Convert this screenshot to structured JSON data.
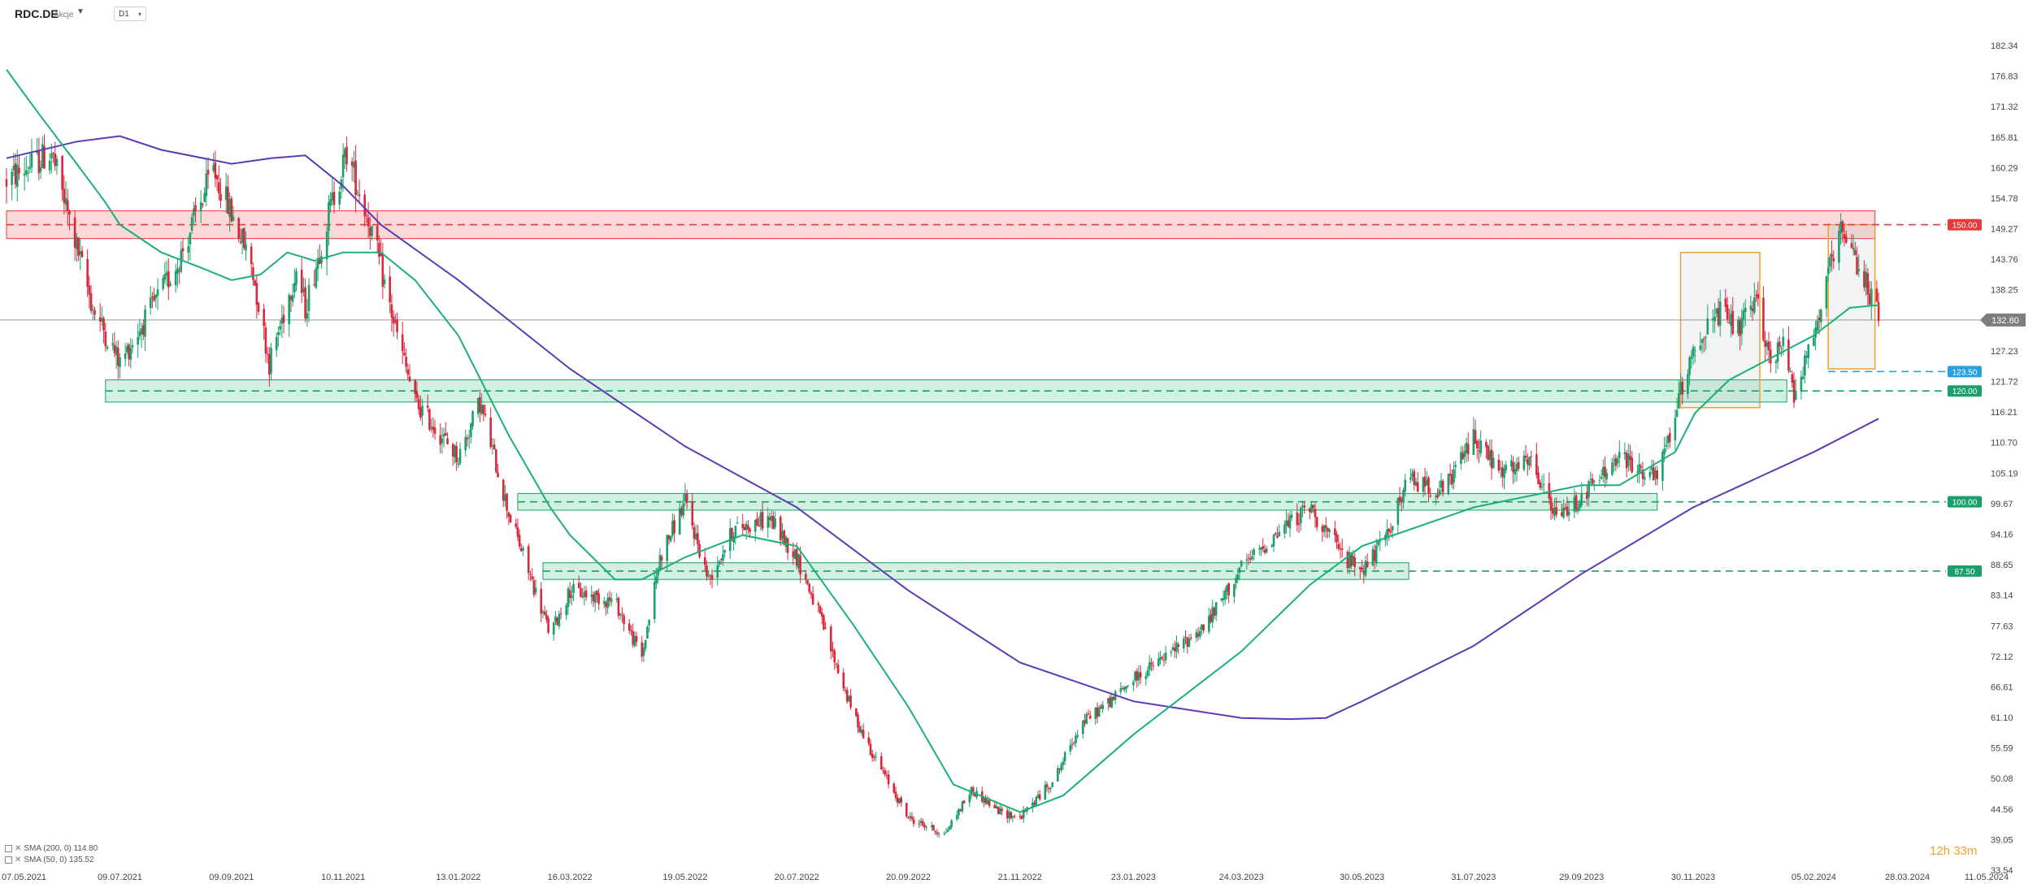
{
  "header": {
    "symbol": "RDC.DE",
    "instrument_type": "Akcje",
    "interval": "D1"
  },
  "indicators": [
    {
      "label": "SMA (200, 0) 114.80",
      "color": "#5b3bb5"
    },
    {
      "label": "SMA (50, 0) 135.52",
      "color": "#1ab07a"
    }
  ],
  "countdown": "12h 33m",
  "colors": {
    "up": "#1aa06a",
    "down": "#d8283c",
    "sma200": "#5b3bb5",
    "sma50": "#1ab07a",
    "resistance": "#e23c3c",
    "support": "#1aa06a",
    "current_price": "#8a8a8a",
    "highlight": "#f0a030",
    "level_blue": "#2aa0e0"
  },
  "chart_data": {
    "type": "candlestick",
    "instrument": "RDC.DE",
    "timeframe": "D1",
    "y_ticks": [
      182.34,
      176.83,
      171.32,
      165.81,
      160.29,
      154.78,
      149.27,
      143.76,
      138.25,
      127.23,
      121.72,
      116.21,
      110.7,
      105.19,
      99.67,
      94.16,
      88.65,
      83.14,
      77.63,
      72.12,
      66.61,
      61.1,
      55.59,
      50.08,
      44.56,
      39.05,
      33.54
    ],
    "ylim": [
      33.54,
      185
    ],
    "x_ticks": [
      "07.05.2021",
      "09.07.2021",
      "09.09.2021",
      "10.11.2021",
      "13.01.2022",
      "16.03.2022",
      "19.05.2022",
      "20.07.2022",
      "20.09.2022",
      "21.11.2022",
      "23.01.2023",
      "24.03.2023",
      "30.05.2023",
      "31.07.2023",
      "29.09.2023",
      "30.11.2023",
      "05.02.2024",
      "28.03.2024",
      "11.05.2024"
    ],
    "xlim": [
      "07.05.2021",
      "11.05.2024"
    ],
    "price_path": [
      [
        "07.05.2021",
        158
      ],
      [
        "01.06.2021",
        163
      ],
      [
        "24.06.2021",
        135
      ],
      [
        "09.07.2021",
        125
      ],
      [
        "10.08.2021",
        143
      ],
      [
        "30.08.2021",
        160
      ],
      [
        "20.09.2021",
        143
      ],
      [
        "30.09.2021",
        125
      ],
      [
        "15.10.2021",
        142
      ],
      [
        "20.10.2021",
        135
      ],
      [
        "02.11.2021",
        152
      ],
      [
        "12.11.2021",
        163
      ],
      [
        "25.11.2021",
        150
      ],
      [
        "10.12.2021",
        130
      ],
      [
        "20.12.2021",
        118
      ],
      [
        "13.01.2022",
        108
      ],
      [
        "25.01.2022",
        118
      ],
      [
        "10.02.2022",
        98
      ],
      [
        "05.03.2022",
        76
      ],
      [
        "16.03.2022",
        84
      ],
      [
        "10.04.2022",
        82
      ],
      [
        "25.04.2022",
        72
      ],
      [
        "05.05.2022",
        90
      ],
      [
        "19.05.2022",
        100
      ],
      [
        "01.06.2022",
        86
      ],
      [
        "15.06.2022",
        95
      ],
      [
        "05.07.2022",
        97
      ],
      [
        "20.07.2022",
        90
      ],
      [
        "01.08.2022",
        80
      ],
      [
        "20.08.2022",
        62
      ],
      [
        "01.09.2022",
        54
      ],
      [
        "20.09.2022",
        43
      ],
      [
        "10.10.2022",
        40
      ],
      [
        "25.10.2022",
        48
      ],
      [
        "10.11.2022",
        44
      ],
      [
        "21.11.2022",
        43
      ],
      [
        "10.12.2022",
        50
      ],
      [
        "25.12.2022",
        60
      ],
      [
        "10.01.2023",
        64
      ],
      [
        "23.01.2023",
        68
      ],
      [
        "10.02.2023",
        72
      ],
      [
        "05.03.2023",
        78
      ],
      [
        "24.03.2023",
        88
      ],
      [
        "15.04.2023",
        95
      ],
      [
        "01.05.2023",
        99
      ],
      [
        "20.05.2023",
        90
      ],
      [
        "30.05.2023",
        88
      ],
      [
        "10.06.2023",
        92
      ],
      [
        "25.06.2023",
        104
      ],
      [
        "15.07.2023",
        102
      ],
      [
        "31.07.2023",
        112
      ],
      [
        "15.08.2023",
        105
      ],
      [
        "01.09.2023",
        107
      ],
      [
        "15.09.2023",
        97
      ],
      [
        "29.09.2023",
        101
      ],
      [
        "20.10.2023",
        108
      ],
      [
        "10.11.2023",
        104
      ],
      [
        "20.11.2023",
        116
      ],
      [
        "30.11.2023",
        128
      ],
      [
        "15.12.2023",
        134
      ],
      [
        "25.12.2023",
        131
      ],
      [
        "05.01.2024",
        136
      ],
      [
        "12.01.2024",
        125
      ],
      [
        "20.01.2024",
        129
      ],
      [
        "25.01.2024",
        120
      ],
      [
        "05.02.2024",
        130
      ],
      [
        "15.02.2024",
        143
      ],
      [
        "20.02.2024",
        148
      ],
      [
        "25.02.2024",
        145
      ],
      [
        "05.03.2024",
        140
      ],
      [
        "12.03.2024",
        133
      ]
    ],
    "series": [
      {
        "name": "SMA (200, 0) 114.80",
        "points": [
          [
            "07.05.2021",
            162
          ],
          [
            "15.06.2021",
            165
          ],
          [
            "09.07.2021",
            166
          ],
          [
            "01.08.2021",
            163.5
          ],
          [
            "09.09.2021",
            161
          ],
          [
            "01.10.2021",
            162
          ],
          [
            "20.10.2021",
            162.5
          ],
          [
            "10.11.2021",
            157
          ],
          [
            "01.12.2021",
            150
          ],
          [
            "13.01.2022",
            140
          ],
          [
            "16.03.2022",
            124
          ],
          [
            "19.05.2022",
            110
          ],
          [
            "20.07.2022",
            99
          ],
          [
            "20.09.2022",
            84
          ],
          [
            "21.11.2022",
            71
          ],
          [
            "23.01.2023",
            64
          ],
          [
            "24.03.2023",
            61
          ],
          [
            "20.04.2023",
            60.8
          ],
          [
            "10.05.2023",
            61
          ],
          [
            "30.05.2023",
            64
          ],
          [
            "31.07.2023",
            74
          ],
          [
            "29.09.2023",
            87
          ],
          [
            "30.11.2023",
            99
          ],
          [
            "05.02.2024",
            109
          ],
          [
            "12.03.2024",
            115
          ]
        ]
      },
      {
        "name": "SMA (50, 0) 135.52",
        "points": [
          [
            "07.05.2021",
            178
          ],
          [
            "25.05.2021",
            170
          ],
          [
            "15.06.2021",
            161
          ],
          [
            "01.07.2021",
            154
          ],
          [
            "09.07.2021",
            150
          ],
          [
            "01.08.2021",
            145
          ],
          [
            "25.08.2021",
            142
          ],
          [
            "09.09.2021",
            140
          ],
          [
            "25.09.2021",
            141
          ],
          [
            "10.10.2021",
            145
          ],
          [
            "25.10.2021",
            143.5
          ],
          [
            "10.11.2021",
            145
          ],
          [
            "01.12.2021",
            145
          ],
          [
            "20.12.2021",
            140
          ],
          [
            "13.01.2022",
            130
          ],
          [
            "10.02.2022",
            112
          ],
          [
            "05.03.2022",
            99
          ],
          [
            "16.03.2022",
            94
          ],
          [
            "10.04.2022",
            86
          ],
          [
            "25.04.2022",
            86
          ],
          [
            "19.05.2022",
            90
          ],
          [
            "20.06.2022",
            94
          ],
          [
            "20.07.2022",
            92
          ],
          [
            "20.08.2022",
            78
          ],
          [
            "20.09.2022",
            63
          ],
          [
            "15.10.2022",
            49
          ],
          [
            "21.11.2022",
            44
          ],
          [
            "15.12.2022",
            47
          ],
          [
            "23.01.2023",
            58
          ],
          [
            "24.03.2023",
            73
          ],
          [
            "01.05.2023",
            85
          ],
          [
            "30.05.2023",
            92
          ],
          [
            "31.07.2023",
            99
          ],
          [
            "29.09.2023",
            103
          ],
          [
            "20.10.2023",
            103
          ],
          [
            "20.11.2023",
            109
          ],
          [
            "01.12.2023",
            116
          ],
          [
            "20.12.2023",
            122
          ],
          [
            "05.02.2024",
            130
          ],
          [
            "25.02.2024",
            135
          ],
          [
            "12.03.2024",
            135.5
          ]
        ]
      }
    ],
    "zones": [
      {
        "kind": "resistance",
        "from": "07.05.2021",
        "to": "10.03.2024",
        "low": 147.5,
        "high": 152.5
      },
      {
        "kind": "support",
        "from": "01.07.2021",
        "to": "21.01.2024",
        "low": 118,
        "high": 122
      },
      {
        "kind": "support",
        "from": "15.02.2022",
        "to": "10.11.2023",
        "low": 98.5,
        "high": 101.5
      },
      {
        "kind": "support",
        "from": "01.03.2022",
        "to": "25.06.2023",
        "low": 86,
        "high": 89
      }
    ],
    "highlight_boxes": [
      {
        "from": "23.11.2023",
        "to": "06.01.2024",
        "low": 117,
        "high": 145
      },
      {
        "from": "13.02.2024",
        "to": "10.03.2024",
        "low": 124,
        "high": 150
      }
    ],
    "levels": [
      {
        "value": 150.0,
        "label": "150.00",
        "kind": "resistance"
      },
      {
        "value": 123.5,
        "label": "123.50",
        "kind": "blue"
      },
      {
        "value": 120.0,
        "label": "120.00",
        "kind": "support"
      },
      {
        "value": 100.0,
        "label": "100.00",
        "kind": "support"
      },
      {
        "value": 87.5,
        "label": "87.50",
        "kind": "support"
      }
    ],
    "current_price": {
      "value": 132.8,
      "label": "132.80"
    },
    "grid": false,
    "legend_position": "bottom-left"
  }
}
